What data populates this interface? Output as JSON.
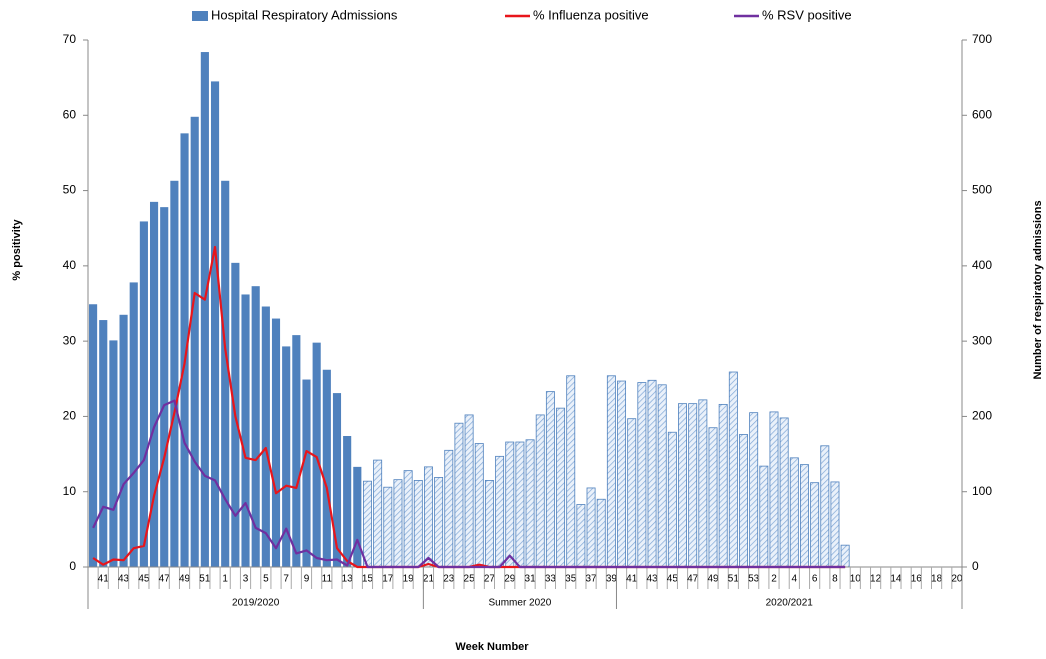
{
  "chart_data": {
    "type": "bar-line",
    "x_title": "Week Number",
    "y_title": "% positivity",
    "y2_title": "Number of respiratory admissions",
    "categories": [
      null,
      "41",
      null,
      "43",
      null,
      "45",
      null,
      "47",
      null,
      "49",
      null,
      "51",
      null,
      "1",
      null,
      "3",
      null,
      "5",
      null,
      "7",
      null,
      "9",
      null,
      "11",
      null,
      "13",
      null,
      "15",
      null,
      "17",
      null,
      "19",
      null,
      "21",
      null,
      "23",
      null,
      "25",
      null,
      "27",
      null,
      "29",
      null,
      "31",
      null,
      "33",
      null,
      "35",
      null,
      "37",
      null,
      "39",
      null,
      "41",
      null,
      "43",
      null,
      "45",
      null,
      "47",
      null,
      "49",
      null,
      "51",
      null,
      "53",
      null,
      "2",
      null,
      "4",
      null,
      "6",
      null,
      "8",
      null,
      "10",
      null,
      "12",
      null,
      "14",
      null,
      "16",
      null,
      "18",
      null,
      "20"
    ],
    "groups": [
      {
        "label": "2019/2020",
        "span": 33
      },
      {
        "label": "Summer 2020",
        "span": 19
      },
      {
        "label": "2020/2021",
        "span": 34
      }
    ],
    "series": [
      {
        "name": "Hospital Respiratory Admissions",
        "kind": "bar",
        "axis": "y2",
        "color": "#4f81bd",
        "hatch_from_index": 27,
        "values": [
          349,
          328,
          301,
          335,
          378,
          459,
          485,
          478,
          513,
          576,
          598,
          684,
          645,
          513,
          404,
          362,
          373,
          346,
          330,
          293,
          308,
          249,
          298,
          262,
          231,
          174,
          133,
          114,
          142,
          106,
          116,
          128,
          115,
          133,
          119,
          155,
          191,
          202,
          164,
          115,
          147,
          166,
          166,
          169,
          202,
          233,
          211,
          254,
          83,
          105,
          90,
          254,
          247,
          197,
          245,
          248,
          242,
          179,
          217,
          217,
          222,
          185,
          216,
          259,
          176,
          205,
          134,
          206,
          198,
          145,
          136,
          112,
          161,
          113,
          29,
          null,
          null,
          null,
          null,
          null,
          null,
          null,
          null,
          null,
          null,
          null
        ]
      },
      {
        "name": "% Influenza positive",
        "kind": "line",
        "color": "#e8151b",
        "values": [
          1.2,
          0.3,
          1,
          0.9,
          2.5,
          2.8,
          9.5,
          14.5,
          20.5,
          27,
          36.4,
          35.5,
          42.5,
          29,
          20,
          14.5,
          14.2,
          15.8,
          9.8,
          10.8,
          10.5,
          15.4,
          14.6,
          10.5,
          2.5,
          0.8,
          0,
          0,
          0,
          0,
          0,
          0,
          0,
          0.4,
          0,
          0,
          0,
          0,
          0.3,
          0,
          0,
          0,
          0,
          0,
          0,
          0,
          0,
          0,
          0,
          0,
          0,
          0,
          0,
          0,
          0,
          0,
          0,
          0,
          0,
          0,
          0,
          0,
          0,
          0,
          0,
          0,
          0,
          0,
          0,
          0,
          0,
          0,
          0,
          0,
          0,
          null,
          null,
          null,
          null,
          null,
          null,
          null,
          null,
          null,
          null,
          null
        ]
      },
      {
        "name": "% RSV positive",
        "kind": "line",
        "color": "#7030a0",
        "values": [
          5.2,
          8,
          7.6,
          11,
          12.5,
          14.2,
          18.6,
          21.5,
          22.1,
          16.5,
          14,
          12.1,
          11.5,
          9,
          6.8,
          8.5,
          5.2,
          4.5,
          2.5,
          5.1,
          1.8,
          2.2,
          1.2,
          0.9,
          1,
          0.2,
          3.6,
          0,
          0,
          0,
          0,
          0,
          0,
          1.2,
          0,
          0,
          0,
          0,
          0,
          0,
          0,
          1.5,
          0,
          0,
          0,
          0,
          0,
          0,
          0,
          0,
          0,
          0,
          0,
          0,
          0,
          0,
          0,
          0,
          0,
          0,
          0,
          0,
          0,
          0,
          0,
          0,
          0,
          0,
          0,
          0,
          0,
          0,
          0,
          0,
          0,
          null,
          null,
          null,
          null,
          null,
          null,
          null,
          null,
          null,
          null,
          null
        ]
      }
    ],
    "ylim": [
      0,
      70
    ],
    "yticks": [
      0,
      10,
      20,
      30,
      40,
      50,
      60,
      70
    ],
    "y2lim": [
      0,
      700
    ],
    "y2ticks": [
      0,
      100,
      200,
      300,
      400,
      500,
      600,
      700
    ],
    "legend": "top"
  }
}
